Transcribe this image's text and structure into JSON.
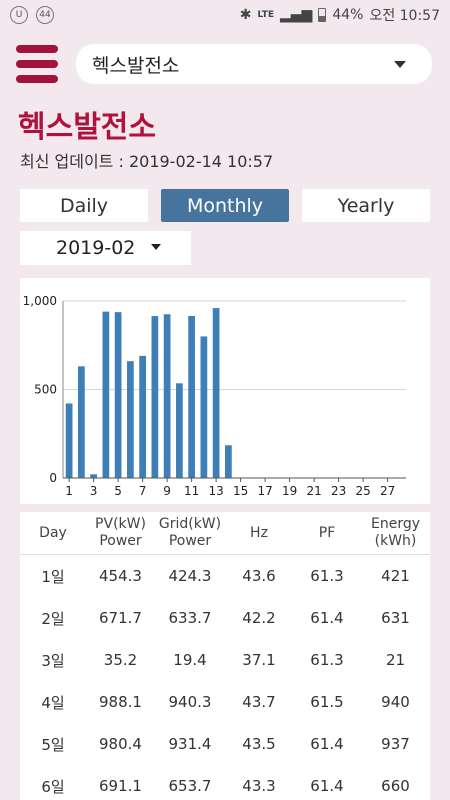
{
  "status_bar": {
    "left_badge": "44",
    "network": "LTE",
    "battery": "44%",
    "time": "오전 10:57"
  },
  "header": {
    "site_selected": "헥스발전소"
  },
  "page": {
    "title": "헥스발전소",
    "update_label": "최신 업데이트 : 2019-02-14 10:57"
  },
  "tabs": [
    {
      "label": "Daily",
      "active": false
    },
    {
      "label": "Monthly",
      "active": true
    },
    {
      "label": "Yearly",
      "active": false
    }
  ],
  "period_select": "2019-02",
  "colors": {
    "accent": "#a3123a",
    "bar": "#3f7fb8",
    "active_tab": "#47749c"
  },
  "chart_data": {
    "type": "bar",
    "categories": [
      "1",
      "2",
      "3",
      "4",
      "5",
      "6",
      "7",
      "8",
      "9",
      "10",
      "11",
      "12",
      "13",
      "14",
      "15",
      "16",
      "17",
      "18",
      "19",
      "20",
      "21",
      "22",
      "23",
      "24",
      "25",
      "26",
      "27",
      "28"
    ],
    "values": [
      421,
      631,
      21,
      940,
      937,
      660,
      690,
      915,
      925,
      535,
      915,
      800,
      960,
      185,
      0,
      0,
      0,
      0,
      0,
      0,
      0,
      0,
      0,
      0,
      0,
      0,
      0,
      0
    ],
    "x_tick_labels": [
      "1",
      "3",
      "5",
      "7",
      "9",
      "11",
      "13",
      "15",
      "17",
      "19",
      "21",
      "23",
      "25",
      "27"
    ],
    "y_tick_labels": [
      "0",
      "500",
      "1,000"
    ],
    "ylim": [
      0,
      1000
    ],
    "grid": true,
    "title": "",
    "xlabel": "",
    "ylabel": ""
  },
  "table": {
    "headers": [
      {
        "line1": "Day",
        "line2": ""
      },
      {
        "line1": "PV(kW)",
        "line2": "Power"
      },
      {
        "line1": "Grid(kW)",
        "line2": "Power"
      },
      {
        "line1": "Hz",
        "line2": ""
      },
      {
        "line1": "PF",
        "line2": ""
      },
      {
        "line1": "Energy",
        "line2": "(kWh)"
      }
    ],
    "rows": [
      [
        "1일",
        "454.3",
        "424.3",
        "43.6",
        "61.3",
        "421"
      ],
      [
        "2일",
        "671.7",
        "633.7",
        "42.2",
        "61.4",
        "631"
      ],
      [
        "3일",
        "35.2",
        "19.4",
        "37.1",
        "61.3",
        "21"
      ],
      [
        "4일",
        "988.1",
        "940.3",
        "43.7",
        "61.5",
        "940"
      ],
      [
        "5일",
        "980.4",
        "931.4",
        "43.5",
        "61.4",
        "937"
      ],
      [
        "6일",
        "691.1",
        "653.7",
        "43.3",
        "61.4",
        "660"
      ]
    ]
  }
}
